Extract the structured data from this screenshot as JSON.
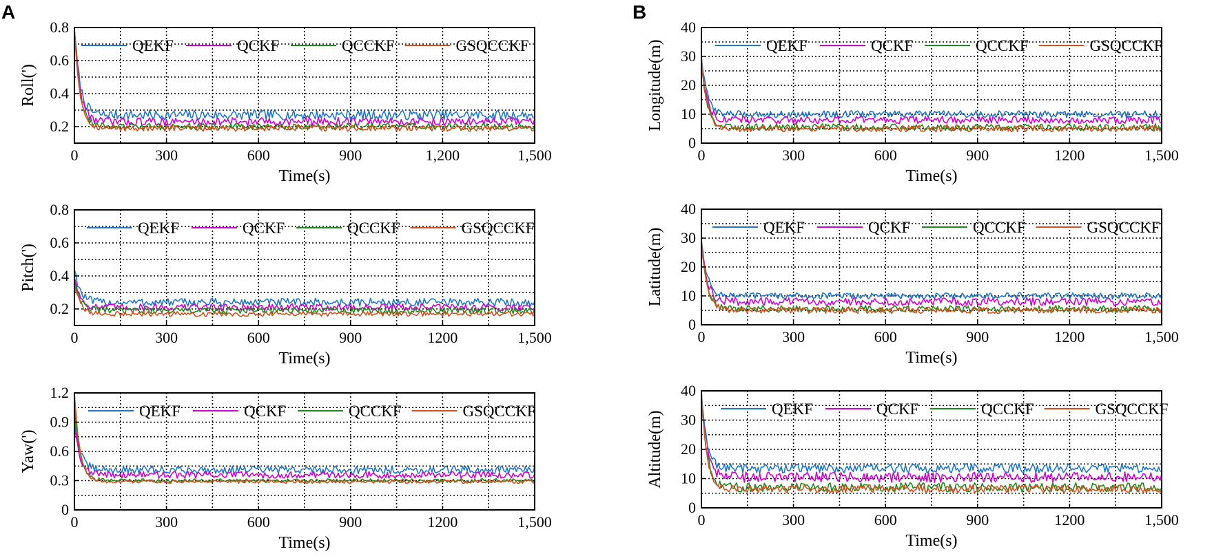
{
  "panel_labels": [
    "A",
    "B"
  ],
  "colors": {
    "QEKF": "#1f77c8",
    "QCKF": "#d400d4",
    "QCCKF": "#1e8a1e",
    "GSQCCKF": "#d4501e"
  },
  "chart_data": [
    {
      "type": "line",
      "panel": "A",
      "title": "",
      "xlabel": "Time(s)",
      "ylabel": "Roll(')",
      "xlim": [
        0,
        1500
      ],
      "ylim": [
        0.1,
        0.8
      ],
      "xticks": [
        0,
        300,
        600,
        900,
        1200,
        1500
      ],
      "xtick_labels": [
        "0",
        "300",
        "600",
        "900",
        "1,200",
        "1,500"
      ],
      "yticks": [
        0.2,
        0.4,
        0.6,
        0.8
      ],
      "ytick_labels": [
        "0.2",
        "0.4",
        "0.6",
        "0.8"
      ],
      "grid": true,
      "legend": "top",
      "series": [
        {
          "name": "QEKF",
          "initial": 0.8,
          "steady": 0.27,
          "noise": 0.03
        },
        {
          "name": "QCKF",
          "initial": 0.8,
          "steady": 0.23,
          "noise": 0.025
        },
        {
          "name": "QCCKF",
          "initial": 0.8,
          "steady": 0.2,
          "noise": 0.02
        },
        {
          "name": "GSQCCKF",
          "initial": 0.8,
          "steady": 0.19,
          "noise": 0.018
        }
      ]
    },
    {
      "type": "line",
      "panel": "A",
      "title": "",
      "xlabel": "Time(s)",
      "ylabel": "Pitch(')",
      "xlim": [
        0,
        1500
      ],
      "ylim": [
        0.1,
        0.8
      ],
      "xticks": [
        0,
        300,
        600,
        900,
        1200,
        1500
      ],
      "xtick_labels": [
        "0",
        "300",
        "600",
        "900",
        "1200",
        "1,500"
      ],
      "yticks": [
        0.2,
        0.4,
        0.6,
        0.8
      ],
      "ytick_labels": [
        "0.2",
        "0.4",
        "0.6",
        "0.8"
      ],
      "grid": true,
      "legend": "top",
      "series": [
        {
          "name": "QEKF",
          "initial": 0.45,
          "steady": 0.24,
          "noise": 0.025
        },
        {
          "name": "QCKF",
          "initial": 0.4,
          "steady": 0.21,
          "noise": 0.022
        },
        {
          "name": "QCCKF",
          "initial": 0.38,
          "steady": 0.19,
          "noise": 0.02
        },
        {
          "name": "GSQCCKF",
          "initial": 0.36,
          "steady": 0.17,
          "noise": 0.015
        }
      ]
    },
    {
      "type": "line",
      "panel": "A",
      "title": "",
      "xlabel": "Time(s)",
      "ylabel": "Yaw(')",
      "xlim": [
        0,
        1500
      ],
      "ylim": [
        0,
        1.2
      ],
      "xticks": [
        0,
        300,
        600,
        900,
        1200,
        1500
      ],
      "xtick_labels": [
        "0",
        "300",
        "600",
        "900",
        "1200",
        "1,500"
      ],
      "yticks": [
        0,
        0.3,
        0.6,
        0.9,
        1.2
      ],
      "ytick_labels": [
        "0",
        "0.3",
        "0.6",
        "0.9",
        "1.2"
      ],
      "grid": true,
      "legend": "top",
      "series": [
        {
          "name": "QEKF",
          "initial": 0.95,
          "steady": 0.41,
          "noise": 0.04
        },
        {
          "name": "QCKF",
          "initial": 0.9,
          "steady": 0.36,
          "noise": 0.035
        },
        {
          "name": "QCCKF",
          "initial": 1.1,
          "steady": 0.3,
          "noise": 0.02
        },
        {
          "name": "GSQCCKF",
          "initial": 1.2,
          "steady": 0.29,
          "noise": 0.018
        }
      ]
    },
    {
      "type": "line",
      "panel": "B",
      "title": "",
      "xlabel": "Time(s)",
      "ylabel": "Longitude(m)",
      "xlim": [
        0,
        1500
      ],
      "ylim": [
        0,
        40
      ],
      "xticks": [
        0,
        300,
        600,
        900,
        1200,
        1500
      ],
      "xtick_labels": [
        "0",
        "300",
        "600",
        "900",
        "1200",
        "1,500"
      ],
      "yticks": [
        0,
        10,
        20,
        30,
        40
      ],
      "ytick_labels": [
        "0",
        "10",
        "20",
        "30",
        "40"
      ],
      "grid": true,
      "legend": "top",
      "series": [
        {
          "name": "QEKF",
          "initial": 30,
          "steady": 10,
          "noise": 1.2
        },
        {
          "name": "QCKF",
          "initial": 29,
          "steady": 8,
          "noise": 1.3
        },
        {
          "name": "QCCKF",
          "initial": 28,
          "steady": 5.5,
          "noise": 1.2
        },
        {
          "name": "GSQCCKF",
          "initial": 30,
          "steady": 5,
          "noise": 1.1
        }
      ]
    },
    {
      "type": "line",
      "panel": "B",
      "title": "",
      "xlabel": "Time(s)",
      "ylabel": "Latitude(m)",
      "xlim": [
        0,
        1500
      ],
      "ylim": [
        0,
        40
      ],
      "xticks": [
        0,
        300,
        600,
        900,
        1200,
        1500
      ],
      "xtick_labels": [
        "0",
        "300",
        "600",
        "900",
        "1200",
        "1,500"
      ],
      "yticks": [
        0,
        10,
        20,
        30,
        40
      ],
      "ytick_labels": [
        "0",
        "10",
        "20",
        "30",
        "40"
      ],
      "grid": true,
      "legend": "top",
      "series": [
        {
          "name": "QEKF",
          "initial": 30,
          "steady": 10,
          "noise": 1.1
        },
        {
          "name": "QCKF",
          "initial": 29,
          "steady": 8,
          "noise": 1.4
        },
        {
          "name": "QCCKF",
          "initial": 28,
          "steady": 5.5,
          "noise": 1.2
        },
        {
          "name": "GSQCCKF",
          "initial": 29,
          "steady": 5,
          "noise": 1.1
        }
      ]
    },
    {
      "type": "line",
      "panel": "B",
      "title": "",
      "xlabel": "Time(s)",
      "ylabel": "Altitude(m)",
      "xlim": [
        0,
        1500
      ],
      "ylim": [
        0,
        40
      ],
      "xticks": [
        0,
        300,
        600,
        900,
        1200,
        1500
      ],
      "xtick_labels": [
        "0",
        "300",
        "600",
        "900",
        "1200",
        "1,500"
      ],
      "yticks": [
        0,
        10,
        20,
        30,
        40
      ],
      "ytick_labels": [
        "0",
        "10",
        "20",
        "30",
        "40"
      ],
      "grid": true,
      "legend": "top",
      "series": [
        {
          "name": "QEKF",
          "initial": 38,
          "steady": 13.5,
          "noise": 1.6
        },
        {
          "name": "QCKF",
          "initial": 36,
          "steady": 10.5,
          "noise": 1.8
        },
        {
          "name": "QCCKF",
          "initial": 40,
          "steady": 7,
          "noise": 1.6
        },
        {
          "name": "GSQCCKF",
          "initial": 40,
          "steady": 6.5,
          "noise": 1.4
        }
      ]
    }
  ]
}
